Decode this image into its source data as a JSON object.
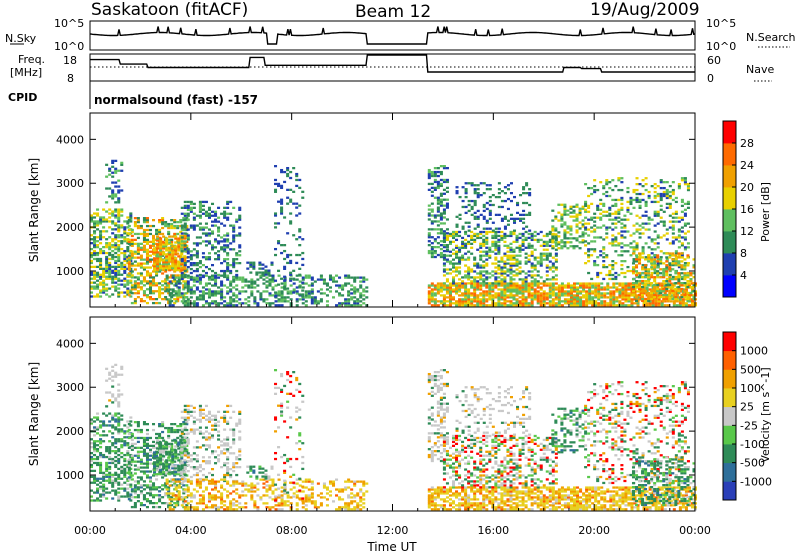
{
  "header": {
    "station": "Saskatoon (fitACF)",
    "beam": "Beam 12",
    "date": "19/Aug/2009"
  },
  "top_panels": {
    "nsky_label": "N.Sky",
    "nsky_ticks": [
      "10^5",
      "10^0"
    ],
    "nsearch_label": "N.Search",
    "nsearch_ticks": [
      "10^5",
      "10^0"
    ],
    "freq_label": "Freq.",
    "freq_unit": "[MHz]",
    "freq_ticks": [
      "18",
      "8"
    ],
    "nave_label": "Nave",
    "nave_ticks": [
      "60",
      "0"
    ],
    "cpid_label": "CPID",
    "cpid_text": "normalsound (fast) -157"
  },
  "colors": {
    "power_scale": [
      "#0000ff",
      "#1f3fb0",
      "#2e8b57",
      "#5fbf5f",
      "#e8d000",
      "#f0a000",
      "#ff6a00",
      "#ff0000"
    ],
    "velocity_scale": [
      "#2a3fb8",
      "#2e6f9a",
      "#2e8b57",
      "#59c84a",
      "#c8c8c8",
      "#e8d020",
      "#f0a000",
      "#ff6000",
      "#ff0000"
    ]
  },
  "chart_data": [
    {
      "type": "heatmap",
      "panel": "power",
      "ylabel": "Slant Range [km]",
      "yticks": [
        "1000",
        "2000",
        "3000",
        "4000"
      ],
      "ylim": [
        180,
        4600
      ],
      "xticks": [
        "00:00",
        "04:00",
        "08:00",
        "12:00",
        "16:00",
        "20:00",
        "00:00"
      ],
      "xlim_hours": [
        0,
        24
      ],
      "colorbar": {
        "label": "Power [dB]",
        "ticks": [
          "4",
          "8",
          "12",
          "16",
          "20",
          "24",
          "28"
        ],
        "range": [
          0,
          32
        ]
      },
      "data_gap_hours": [
        11.1,
        13.4
      ]
    },
    {
      "type": "heatmap",
      "panel": "velocity",
      "ylabel": "Slant Range [km]",
      "yticks": [
        "1000",
        "2000",
        "3000",
        "4000"
      ],
      "ylim": [
        180,
        4600
      ],
      "xticks": [
        "00:00",
        "04:00",
        "08:00",
        "12:00",
        "16:00",
        "20:00",
        "00:00"
      ],
      "xlabel": "Time UT",
      "xlim_hours": [
        0,
        24
      ],
      "colorbar": {
        "label": "Velocity [m s^-1]",
        "ticks": [
          "1000",
          "500",
          "100",
          "25",
          "-25",
          "-100",
          "-500",
          "-1000"
        ]
      },
      "data_gap_hours": [
        11.1,
        13.4
      ]
    }
  ]
}
